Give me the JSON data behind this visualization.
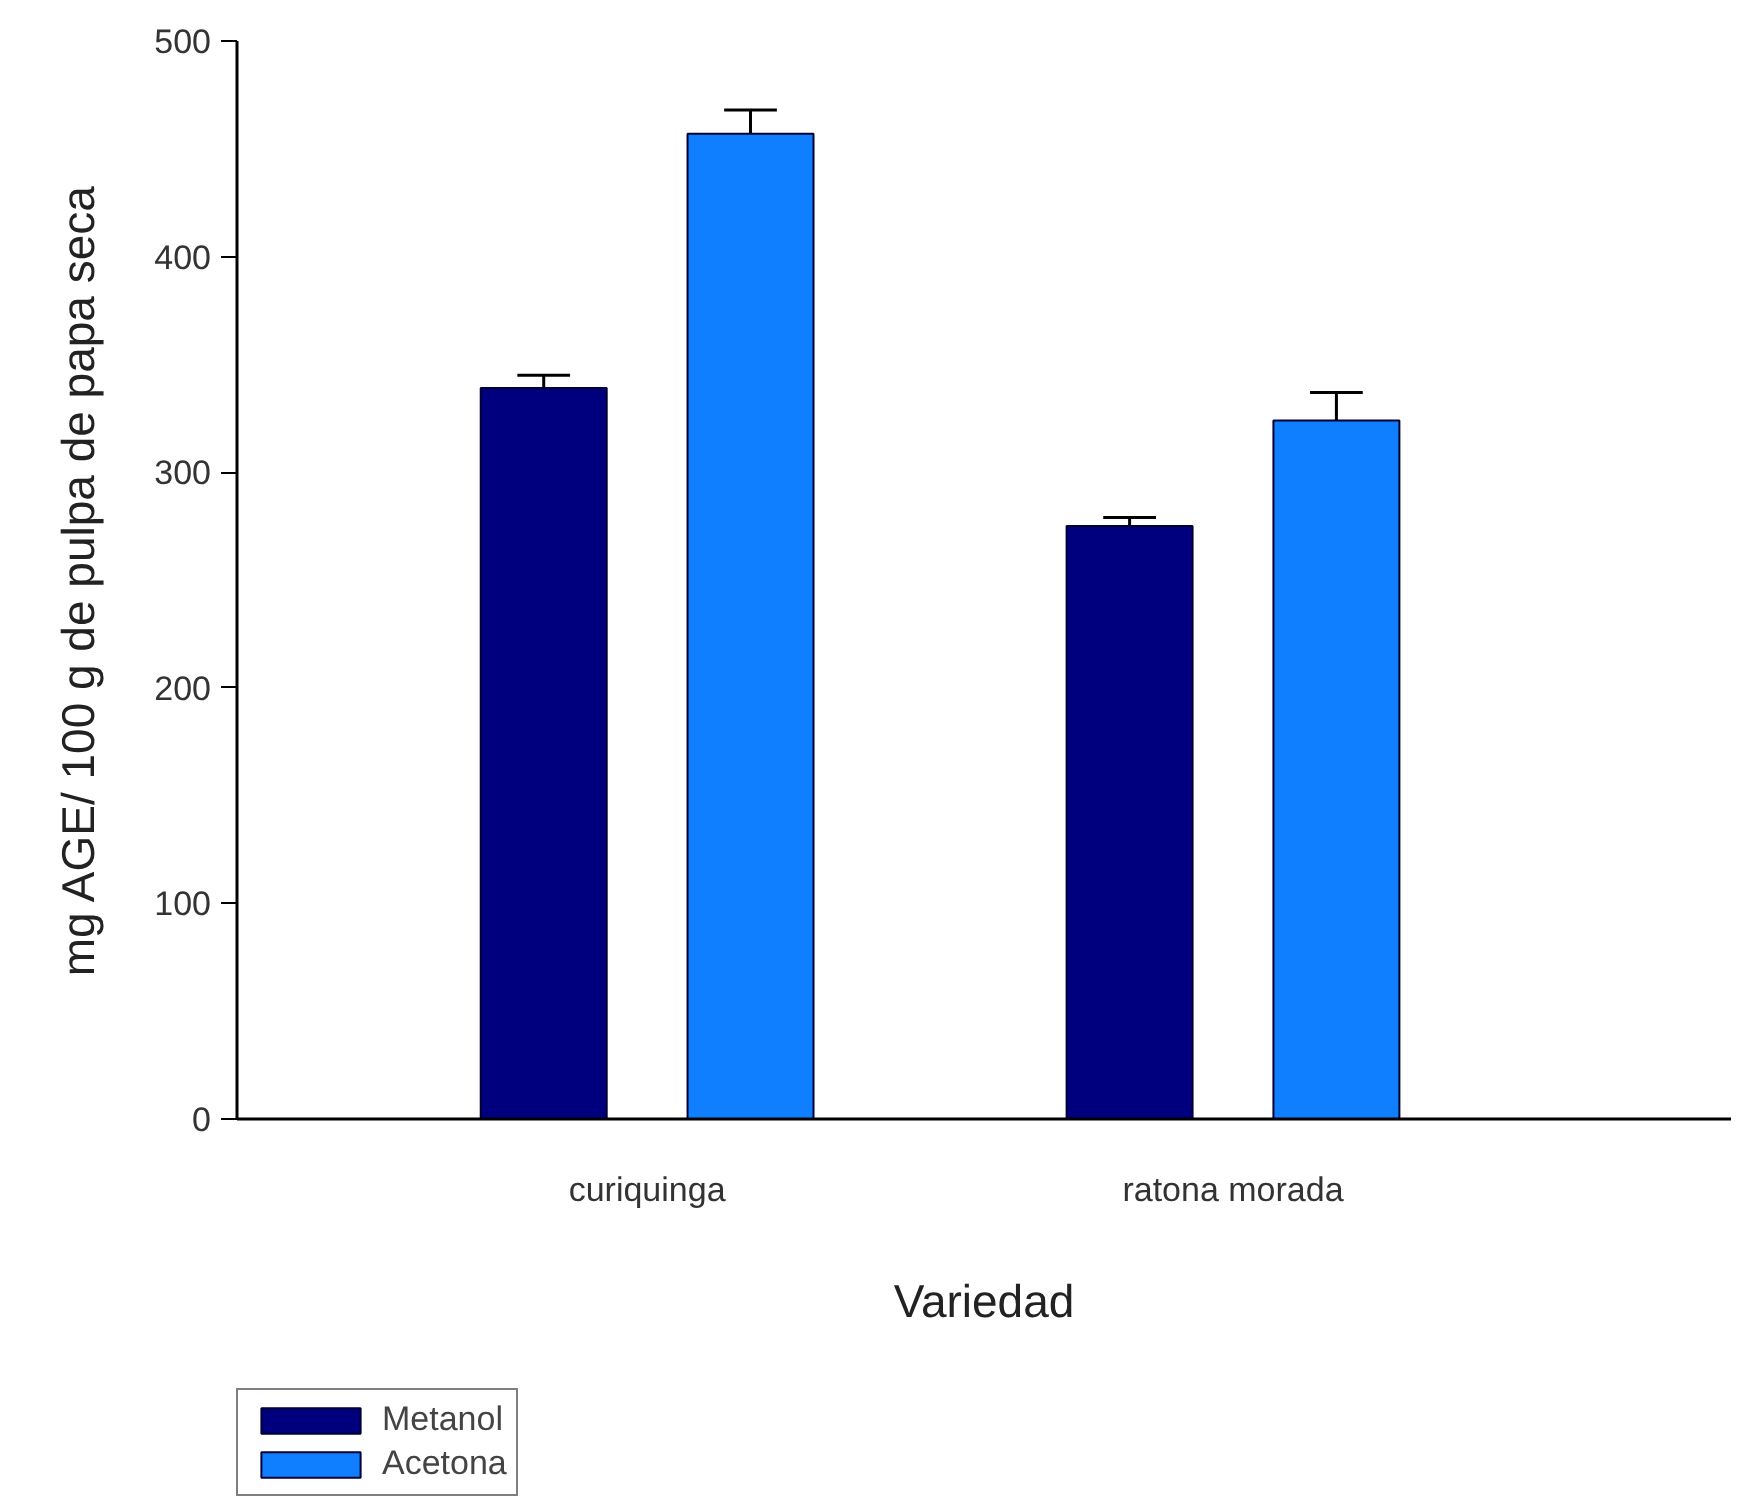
{
  "chart_data": {
    "type": "bar",
    "xlabel": "Variedad",
    "ylabel": "mg AGE/ 100 g de pulpa de papa seca",
    "categories": [
      "curiquinga",
      "ratona morada"
    ],
    "series": [
      {
        "name": "Metanol",
        "color": "#00007f",
        "values": [
          339,
          275
        ],
        "errors": [
          6,
          4
        ]
      },
      {
        "name": "Acetona",
        "color": "#0f7fff",
        "values": [
          457,
          324
        ],
        "errors": [
          11,
          13
        ]
      }
    ],
    "ylim": [
      0,
      500
    ],
    "yticks": [
      0,
      100,
      200,
      300,
      400,
      500
    ],
    "grid": false,
    "legend": "bottom left"
  }
}
